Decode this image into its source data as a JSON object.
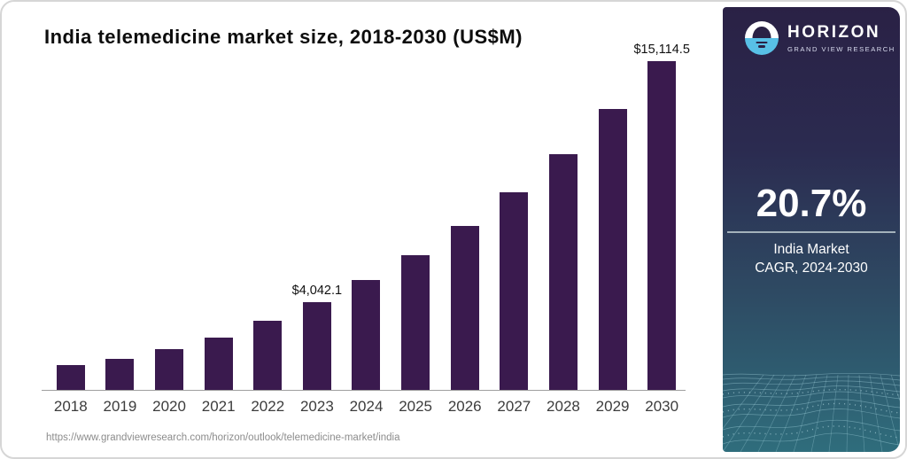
{
  "chart_data": {
    "type": "bar",
    "title": "India telemedicine market size, 2018-2030 (US$M)",
    "categories": [
      "2018",
      "2019",
      "2020",
      "2021",
      "2022",
      "2023",
      "2024",
      "2025",
      "2026",
      "2027",
      "2028",
      "2029",
      "2030"
    ],
    "values": [
      1150,
      1430,
      1870,
      2410,
      3180,
      4042.1,
      5060,
      6190,
      7540,
      9100,
      10840,
      12920,
      15114.5
    ],
    "data_labels": {
      "2023": "$4,042.1",
      "2030": "$15,114.5"
    },
    "unit": "US$M",
    "bar_color": "#3a1a4e",
    "ylim": [
      0,
      15500
    ],
    "grid": false,
    "legend": false
  },
  "panel": {
    "brand_name": "HORIZON",
    "brand_sub": "GRAND VIEW RESEARCH",
    "stat_value": "20.7%",
    "stat_label_line1": "India Market",
    "stat_label_line2": "CAGR, 2024-2030",
    "colors": {
      "top": "#2a2145",
      "bottom": "#2f6d7c",
      "logo_blue": "#58c0e6"
    }
  },
  "footer": {
    "url": "https://www.grandviewresearch.com/horizon/outlook/telemedicine-market/india"
  }
}
